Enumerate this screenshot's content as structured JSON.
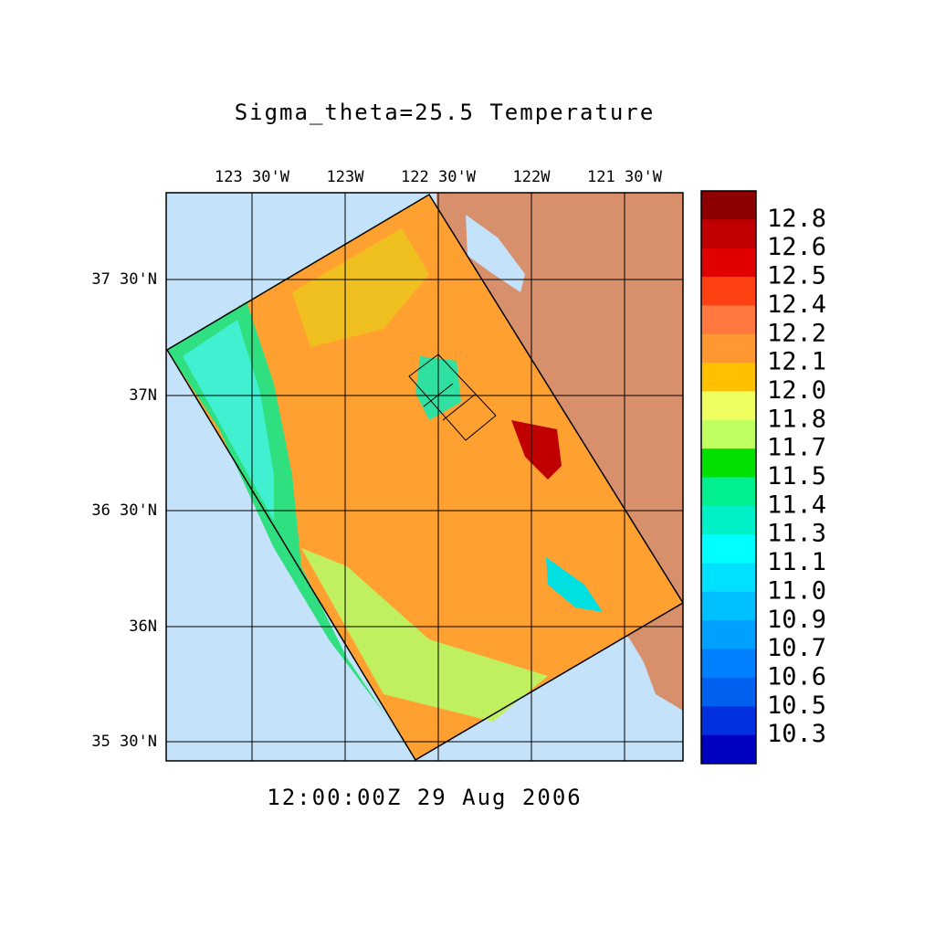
{
  "map": {
    "title": "Sigma_theta=25.5 Temperature",
    "time_label": "12:00:00Z  29 Aug 2006",
    "lon_ticks": [
      "123 30'W",
      "123W",
      "122 30'W",
      "122W",
      "121 30'W"
    ],
    "lat_ticks": [
      "37 30'N",
      "37N",
      "36 30'N",
      "36N",
      "35 30'N"
    ],
    "colorbar": {
      "labels": [
        "12.8",
        "12.6",
        "12.5",
        "12.4",
        "12.2",
        "12.1",
        "12.0",
        "11.8",
        "11.7",
        "11.5",
        "11.4",
        "11.3",
        "11.1",
        "11.0",
        "10.9",
        "10.7",
        "10.6",
        "10.5",
        "10.3"
      ],
      "colors": [
        "#8c0000",
        "#c00000",
        "#e00000",
        "#ff4010",
        "#ff7840",
        "#ff9830",
        "#ffc000",
        "#f0ff60",
        "#c0ff60",
        "#00e000",
        "#00f090",
        "#00f0c8",
        "#00ffff",
        "#00e0ff",
        "#00c0ff",
        "#00a0ff",
        "#0080ff",
        "#0060f0",
        "#0030e0",
        "#0000c0"
      ]
    }
  }
}
